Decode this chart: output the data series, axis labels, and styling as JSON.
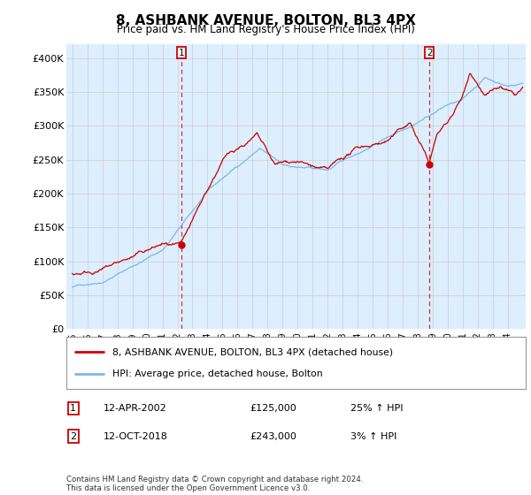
{
  "title": "8, ASHBANK AVENUE, BOLTON, BL3 4PX",
  "subtitle": "Price paid vs. HM Land Registry's House Price Index (HPI)",
  "ylabel_ticks": [
    "£0",
    "£50K",
    "£100K",
    "£150K",
    "£200K",
    "£250K",
    "£300K",
    "£350K",
    "£400K"
  ],
  "ytick_values": [
    0,
    50000,
    100000,
    150000,
    200000,
    250000,
    300000,
    350000,
    400000
  ],
  "ylim": [
    0,
    420000
  ],
  "xlim_start": 1994.6,
  "xlim_end": 2025.2,
  "hpi_color": "#7ab8e8",
  "price_color": "#cc0000",
  "plot_bg_color": "#ddeeff",
  "marker1_date": 2002.28,
  "marker2_date": 2018.78,
  "marker1_price": 125000,
  "marker2_price": 243000,
  "legend1": "8, ASHBANK AVENUE, BOLTON, BL3 4PX (detached house)",
  "legend2": "HPI: Average price, detached house, Bolton",
  "annotation1_date": "12-APR-2002",
  "annotation1_price": "£125,000",
  "annotation1_hpi": "25% ↑ HPI",
  "annotation2_date": "12-OCT-2018",
  "annotation2_price": "£243,000",
  "annotation2_hpi": "3% ↑ HPI",
  "footer": "Contains HM Land Registry data © Crown copyright and database right 2024.\nThis data is licensed under the Open Government Licence v3.0.",
  "background_color": "#ffffff",
  "grid_color": "#cccccc"
}
